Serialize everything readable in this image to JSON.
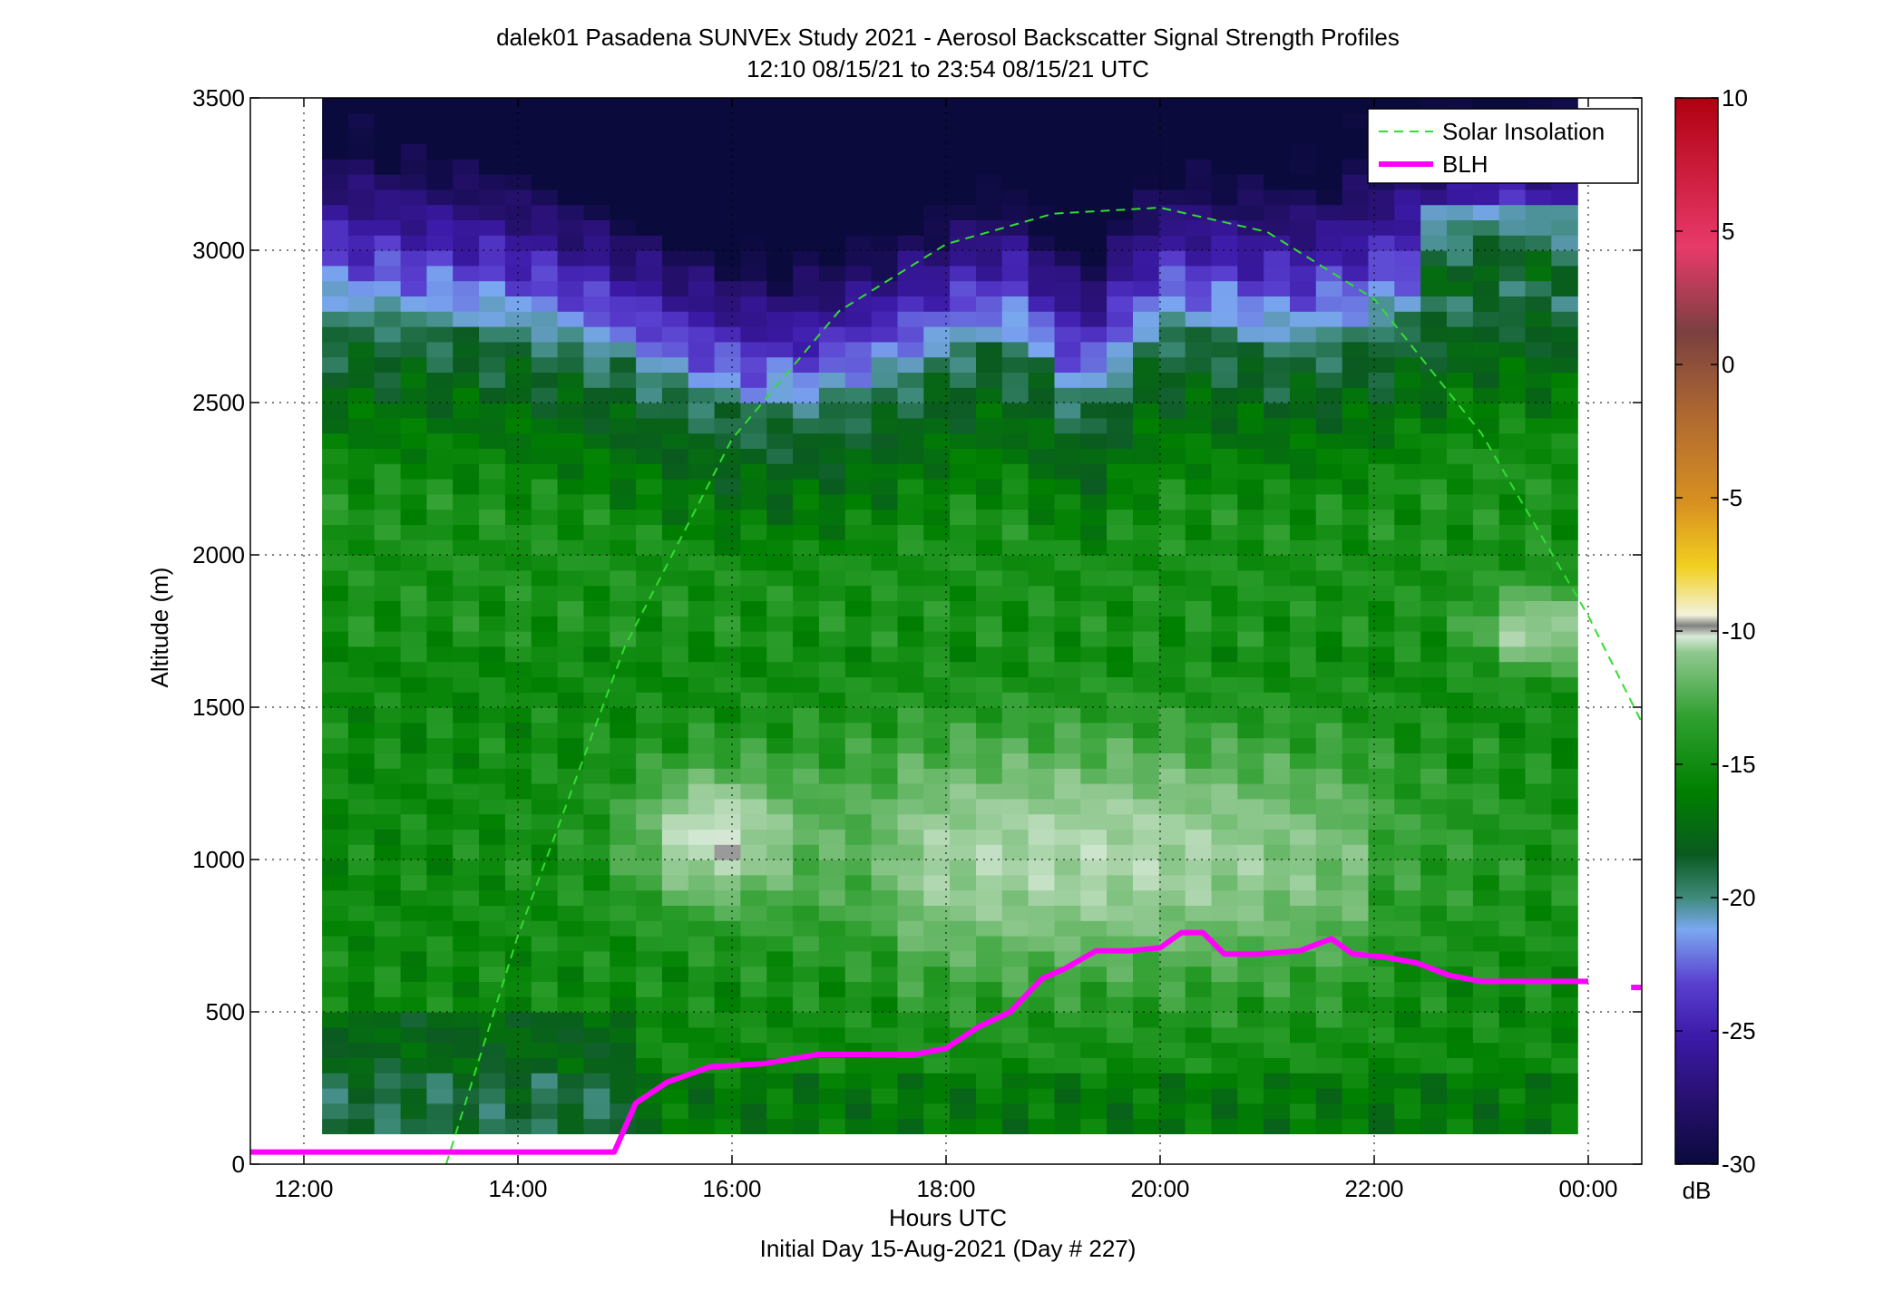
{
  "chart_data": {
    "type": "heatmap",
    "title": "dalek01 Pasadena SUNVEx Study 2021 - Aerosol Backscatter Signal Strength Profiles",
    "subtitle": "12:10 08/15/21 to 23:54 08/15/21  UTC",
    "xlabel": "Hours UTC",
    "xlabel2": "Initial Day 15-Aug-2021 (Day # 227)",
    "ylabel": "Altitude (m)",
    "xlim": [
      11.5,
      24.5
    ],
    "ylim": [
      0,
      3500
    ],
    "x_ticks": [
      12,
      14,
      16,
      18,
      20,
      22,
      24
    ],
    "x_tick_labels": [
      "12:00",
      "14:00",
      "16:00",
      "18:00",
      "20:00",
      "22:00",
      "00:00"
    ],
    "y_ticks": [
      0,
      500,
      1000,
      1500,
      2000,
      2500,
      3000,
      3500
    ],
    "y_tick_labels": [
      "0",
      "500",
      "1000",
      "1500",
      "2000",
      "2500",
      "3000",
      "3500"
    ],
    "grid": true,
    "colorbar": {
      "label": "dB",
      "range": [
        -30,
        10
      ],
      "ticks": [
        10,
        5,
        0,
        -5,
        -10,
        -15,
        -20,
        -25,
        -30
      ],
      "tick_labels": [
        "10",
        "5",
        "0",
        "-5",
        "-10",
        "-15",
        "-20",
        "-25",
        "-30"
      ]
    },
    "heatmap": {
      "x_start": 12.17,
      "x_end": 23.9,
      "y_start": 100,
      "y_end": 3500,
      "x_bins": 48,
      "y_bins": 68
    },
    "legend": {
      "placement": "top-right",
      "entries": [
        "Solar Insolation",
        "BLH"
      ]
    },
    "series": [
      {
        "name": "BLH",
        "color": "#ff00ff",
        "x": [
          11.5,
          14.9,
          15.1,
          15.4,
          15.8,
          16.3,
          16.8,
          17.3,
          17.7,
          18.0,
          18.3,
          18.6,
          18.9,
          19.1,
          19.4,
          19.7,
          20.0,
          20.2,
          20.4,
          20.6,
          20.9,
          21.3,
          21.6,
          21.8,
          22.1,
          22.4,
          22.7,
          23.0,
          23.4,
          23.8,
          24.0
        ],
        "y": [
          40,
          40,
          200,
          270,
          320,
          330,
          360,
          360,
          360,
          380,
          450,
          500,
          610,
          640,
          700,
          700,
          710,
          760,
          760,
          690,
          690,
          700,
          740,
          690,
          680,
          660,
          620,
          600,
          600,
          600,
          600
        ]
      },
      {
        "name": "BLH (tail)",
        "color": "#ff00ff",
        "x": [
          24.4,
          24.5
        ],
        "y": [
          580,
          580
        ]
      },
      {
        "name": "Solar Insolation",
        "color": "#33dd33",
        "x": [
          13.33,
          14.0,
          15.0,
          16.0,
          17.0,
          18.0,
          19.0,
          20.0,
          21.0,
          22.0,
          23.0,
          24.0,
          24.5
        ],
        "y": [
          0,
          750,
          1700,
          2380,
          2800,
          3020,
          3120,
          3140,
          3060,
          2840,
          2400,
          1800,
          1450
        ]
      }
    ]
  }
}
